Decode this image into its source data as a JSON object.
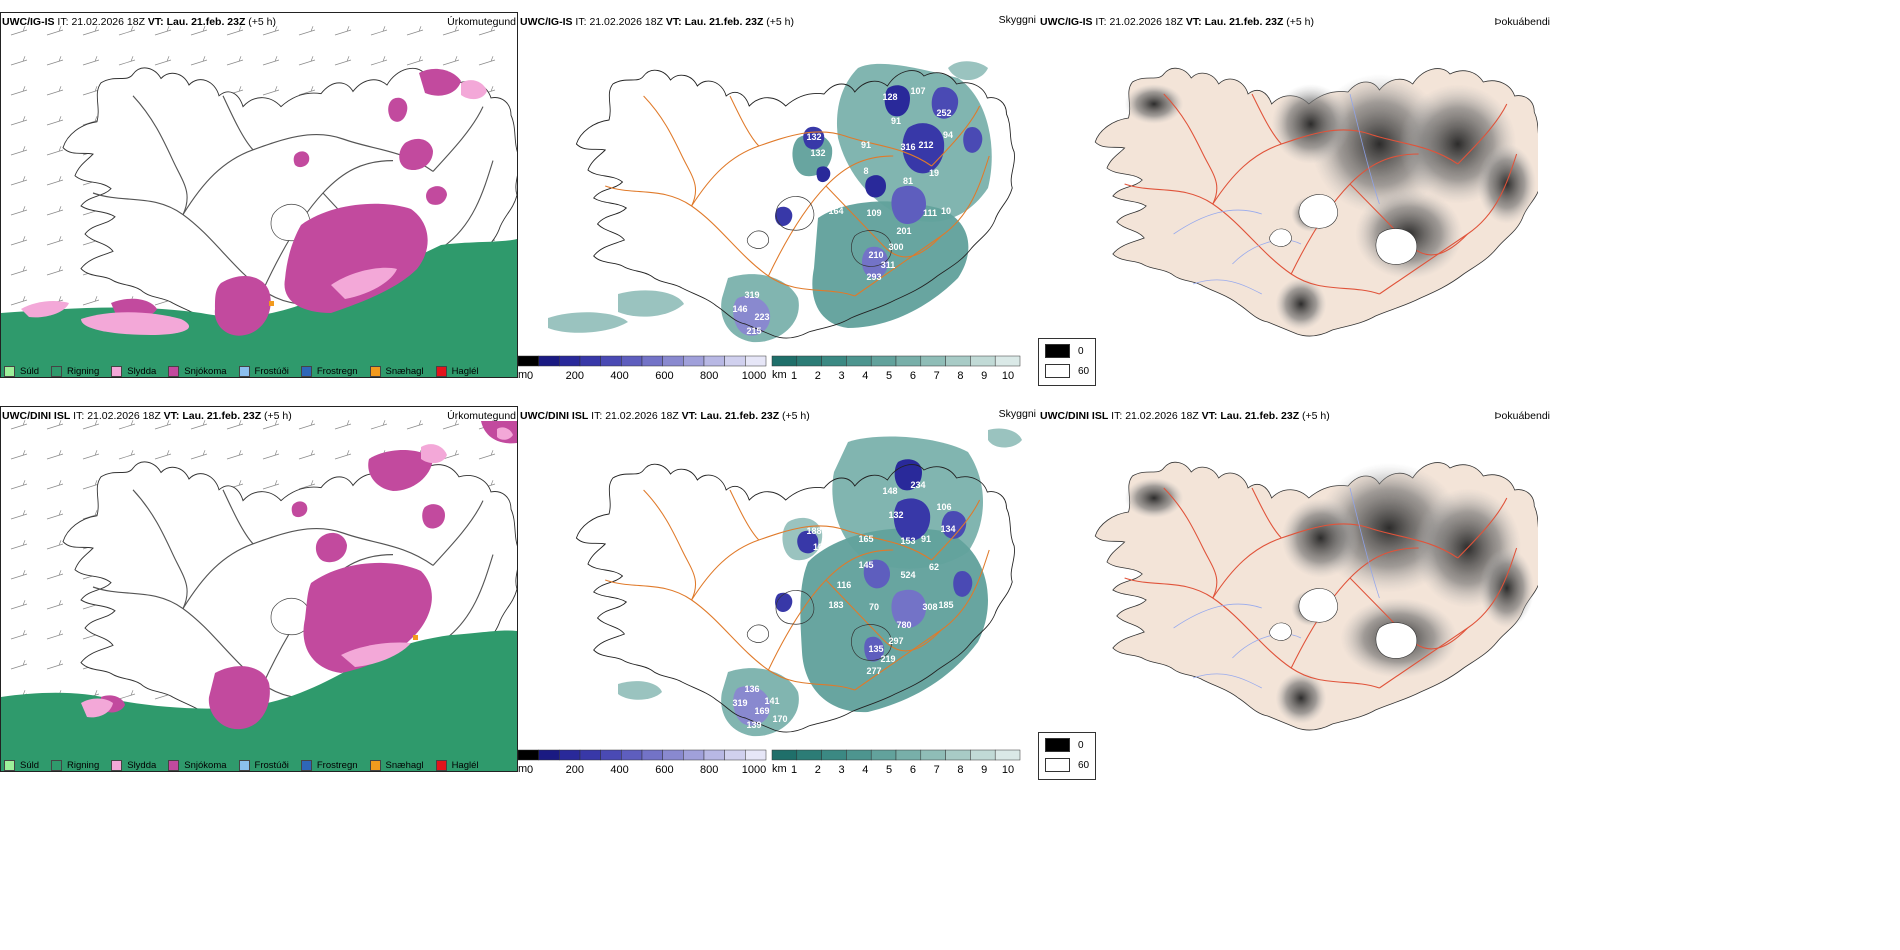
{
  "rows": [
    {
      "model": "UWC/IG-IS",
      "it_label": "IT:",
      "it_value": "21.02.2026 18Z",
      "vt_label": "VT:",
      "vt_value": "Lau. 21.feb. 23Z",
      "lead": "(+5 h)",
      "precip_title": "Úrkomutegund",
      "cloud_title": "Skyggni",
      "fog_title": "Þokuábendi",
      "cloud_labels": [
        {
          "text": "128",
          "id": "a1"
        },
        {
          "text": "107",
          "id": "a2"
        },
        {
          "text": "91",
          "id": "a3"
        },
        {
          "text": "252",
          "id": "a4"
        },
        {
          "text": "132",
          "id": "a5"
        },
        {
          "text": "132",
          "id": "a6"
        },
        {
          "text": "91",
          "id": "a7"
        },
        {
          "text": "316",
          "id": "a8"
        },
        {
          "text": "212",
          "id": "a9"
        },
        {
          "text": "94",
          "id": "a10"
        },
        {
          "text": "8",
          "id": "a11"
        },
        {
          "text": "19",
          "id": "a12"
        },
        {
          "text": "106",
          "id": "a13"
        },
        {
          "text": "81",
          "id": "a14"
        },
        {
          "text": "164",
          "id": "a15"
        },
        {
          "text": "109",
          "id": "a16"
        },
        {
          "text": "111",
          "id": "a17"
        },
        {
          "text": "10",
          "id": "a18"
        },
        {
          "text": "201",
          "id": "a19"
        },
        {
          "text": "300",
          "id": "a20"
        },
        {
          "text": "210",
          "id": "a21"
        },
        {
          "text": "311",
          "id": "a22"
        },
        {
          "text": "293",
          "id": "a23"
        },
        {
          "text": "319",
          "id": "a24"
        },
        {
          "text": "146",
          "id": "a25"
        },
        {
          "text": "223",
          "id": "a26"
        },
        {
          "text": "215",
          "id": "a27"
        }
      ]
    },
    {
      "model": "UWC/DINI ISL",
      "it_label": "IT:",
      "it_value": "21.02.2026 18Z",
      "vt_label": "VT:",
      "vt_value": "Lau. 21.feb. 23Z",
      "lead": "(+5 h)",
      "precip_title": "Úrkomutegund",
      "cloud_title": "Skyggni",
      "fog_title": "Þokuábendi",
      "cloud_labels": [
        {
          "text": "148",
          "id": "b1"
        },
        {
          "text": "234",
          "id": "b2"
        },
        {
          "text": "132",
          "id": "b3"
        },
        {
          "text": "106",
          "id": "b4"
        },
        {
          "text": "188",
          "id": "b5"
        },
        {
          "text": "10",
          "id": "b6"
        },
        {
          "text": "165",
          "id": "b7"
        },
        {
          "text": "153",
          "id": "b8"
        },
        {
          "text": "91",
          "id": "b9"
        },
        {
          "text": "134",
          "id": "b10"
        },
        {
          "text": "145",
          "id": "b11"
        },
        {
          "text": "62",
          "id": "b12"
        },
        {
          "text": "116",
          "id": "b13"
        },
        {
          "text": "524",
          "id": "b14"
        },
        {
          "text": "183",
          "id": "b15"
        },
        {
          "text": "70",
          "id": "b16"
        },
        {
          "text": "308",
          "id": "b17"
        },
        {
          "text": "185",
          "id": "b18"
        },
        {
          "text": "780",
          "id": "b19"
        },
        {
          "text": "297",
          "id": "b20"
        },
        {
          "text": "135",
          "id": "b21"
        },
        {
          "text": "219",
          "id": "b22"
        },
        {
          "text": "277",
          "id": "b23"
        },
        {
          "text": "136",
          "id": "b24"
        },
        {
          "text": "319",
          "id": "b25"
        },
        {
          "text": "169",
          "id": "b26"
        },
        {
          "text": "139",
          "id": "b27"
        },
        {
          "text": "141",
          "id": "b28"
        },
        {
          "text": "170",
          "id": "b29"
        }
      ]
    }
  ],
  "precip_legend": [
    {
      "label": "Súld",
      "color": "#9ef09a"
    },
    {
      "label": "Rigning",
      "color": "#2f9a6c"
    },
    {
      "label": "Slydda",
      "color": "#f3a8d8"
    },
    {
      "label": "Snjókoma",
      "color": "#c24a9e"
    },
    {
      "label": "Frostúði",
      "color": "#8cbfee"
    },
    {
      "label": "Frostregn",
      "color": "#2e66b8"
    },
    {
      "label": "Snæhagl",
      "color": "#f29a1e"
    },
    {
      "label": "Haglél",
      "color": "#e3141c"
    }
  ],
  "cloud_base_scale": {
    "unit": "m",
    "ticks": [
      "0",
      "200",
      "400",
      "600",
      "800",
      "1000"
    ],
    "colors": [
      "#000000",
      "#1a1a82",
      "#29299a",
      "#3838a8",
      "#4a4ab4",
      "#5e5ebe",
      "#7373c7",
      "#8989cf",
      "#a0a0da",
      "#b8b8e4",
      "#d0d0ee",
      "#e6e6f7"
    ]
  },
  "visibility_scale": {
    "unit": "km",
    "ticks": [
      "1",
      "2",
      "3",
      "4",
      "5",
      "6",
      "7",
      "8",
      "9",
      "10"
    ],
    "colors": [
      "#1f6f6a",
      "#2c7c76",
      "#3b8983",
      "#4d958f",
      "#62a29c",
      "#78afa9",
      "#8fbdb7",
      "#a8cbc6",
      "#c1dad6",
      "#dae9e7"
    ]
  },
  "fog_legend": [
    {
      "label": "0",
      "color": "#000000"
    },
    {
      "label": "60",
      "color": "#ffffff"
    }
  ]
}
